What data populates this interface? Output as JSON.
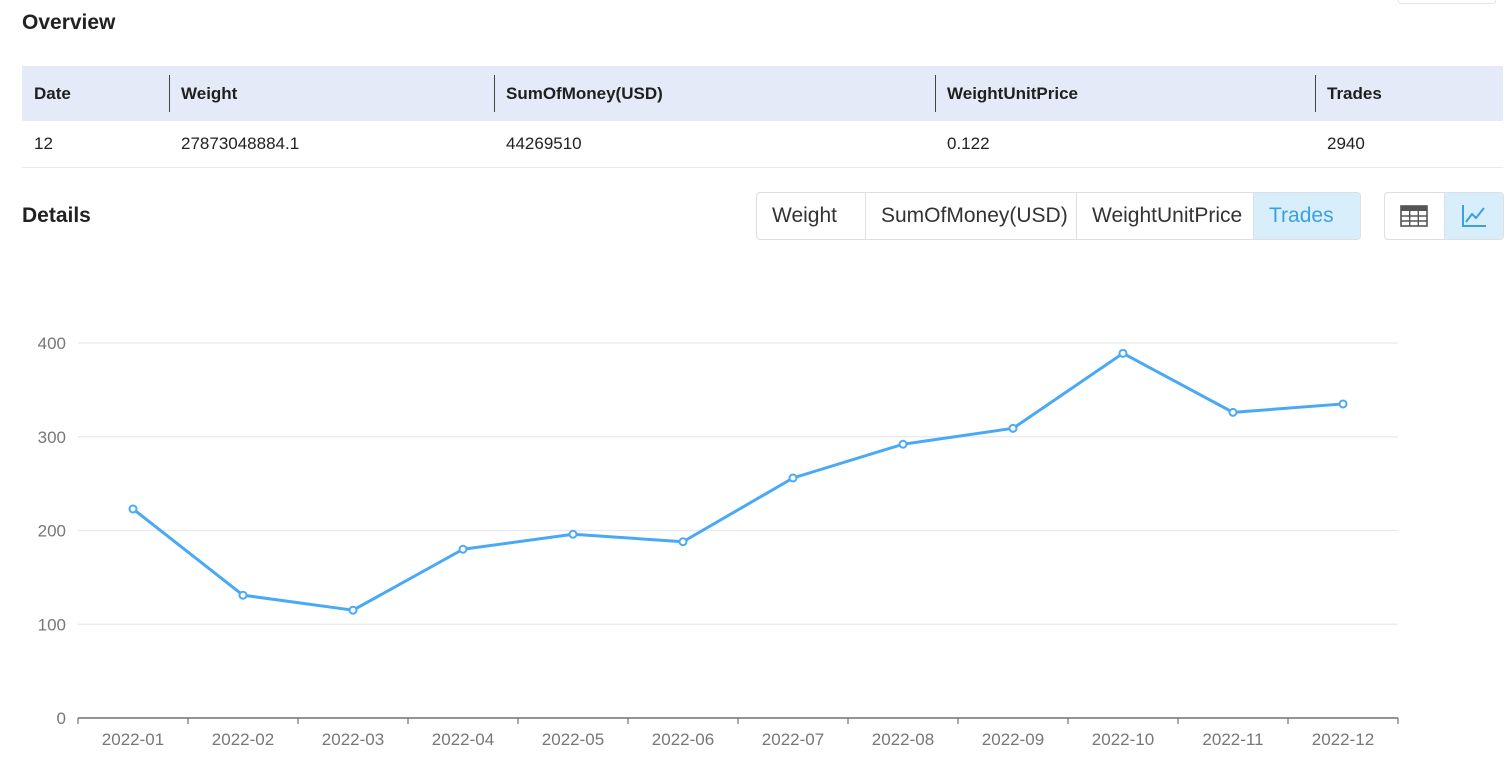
{
  "overview": {
    "title": "Overview",
    "columns": [
      "Date",
      "Weight",
      "SumOfMoney(USD)",
      "WeightUnitPrice",
      "Trades"
    ],
    "row": [
      "12",
      "27873048884.1",
      "44269510",
      "0.122",
      "2940"
    ]
  },
  "details": {
    "title": "Details",
    "metric_tabs": [
      "Weight",
      "SumOfMoney(USD)",
      "WeightUnitPrice",
      "Trades"
    ],
    "active_metric": "Trades",
    "view_icons": [
      "table-icon",
      "line-chart-icon"
    ],
    "active_view": "line-chart-icon"
  },
  "colors": {
    "line": "#4aa9f5",
    "accent": "#3aa0e0",
    "header_bg": "#e4eaf7",
    "active_bg": "#d9eefb"
  },
  "chart_data": {
    "type": "line",
    "categories": [
      "2022-01",
      "2022-02",
      "2022-03",
      "2022-04",
      "2022-05",
      "2022-06",
      "2022-07",
      "2022-08",
      "2022-09",
      "2022-10",
      "2022-11",
      "2022-12"
    ],
    "series": [
      {
        "values": [
          223,
          131,
          115,
          180,
          196,
          188,
          256,
          292,
          309,
          389,
          326,
          335
        ]
      }
    ],
    "yticks": [
      0,
      100,
      200,
      300,
      400
    ],
    "ylim": [
      0,
      400
    ],
    "grid": true
  }
}
